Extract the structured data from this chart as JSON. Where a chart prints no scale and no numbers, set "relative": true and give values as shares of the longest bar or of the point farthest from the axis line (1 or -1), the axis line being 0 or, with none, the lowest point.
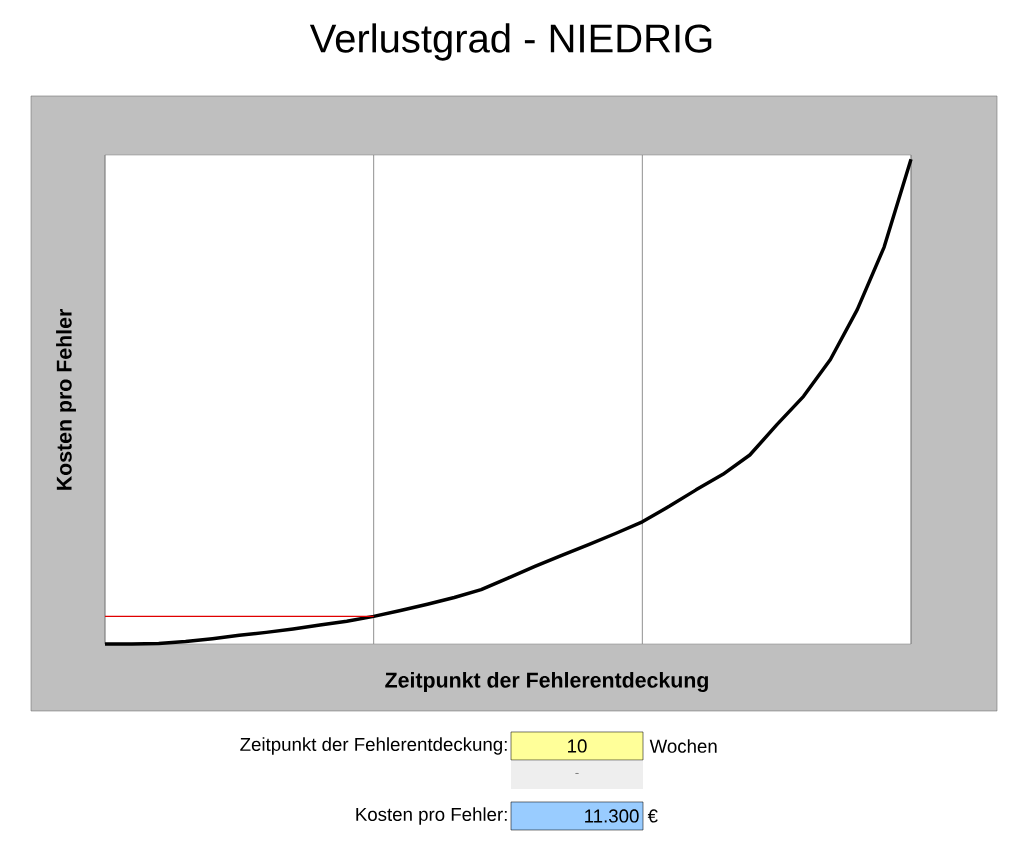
{
  "chart_data": {
    "type": "line",
    "title": "Verlustgrad - NIEDRIG",
    "xlabel": "Zeitpunkt der Fehlerentdeckung",
    "ylabel": "Kosten pro Fehler",
    "relative": true,
    "grid": "x",
    "categories": [
      null,
      null,
      null,
      null,
      null,
      null,
      null,
      null,
      null,
      null,
      null,
      null,
      null,
      null,
      null,
      null,
      null,
      null,
      null,
      null,
      null,
      null,
      null,
      null,
      null,
      null,
      null,
      null,
      null,
      null,
      null
    ],
    "series": [
      {
        "color": "#000000",
        "values": [
          0,
          0,
          0.001,
          0.005,
          0.011,
          0.018,
          0.024,
          0.031,
          0.039,
          0.047,
          0.057,
          0.069,
          0.082,
          0.096,
          0.112,
          0.136,
          0.16,
          0.183,
          0.205,
          0.228,
          0.252,
          0.284,
          0.318,
          0.35,
          0.39,
          0.452,
          0.511,
          0.587,
          0.69,
          0.819,
          1.0
        ]
      },
      {
        "color": "#e00000",
        "values": [
          0.057,
          0.057,
          0.057,
          0.057,
          0.057,
          0.057,
          0.057,
          0.057,
          0.057,
          0.057,
          0.057,
          null,
          null,
          null,
          null,
          null,
          null,
          null,
          null,
          null,
          null,
          null,
          null,
          null,
          null,
          null,
          null,
          null,
          null,
          null,
          null
        ]
      }
    ],
    "annotations": [
      "Zeitpunkt der Fehlerentdeckung:",
      "10",
      "Wochen",
      "-",
      "Kosten pro Fehler:",
      "11.300",
      "€"
    ]
  }
}
